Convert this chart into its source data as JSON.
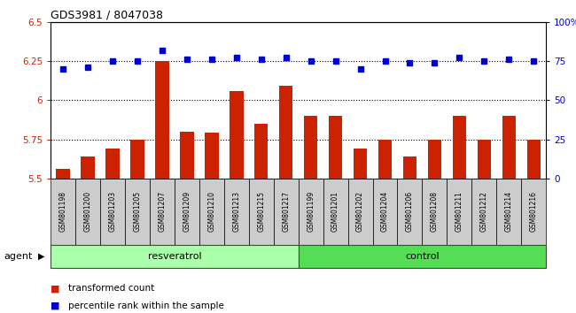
{
  "title": "GDS3981 / 8047038",
  "samples": [
    "GSM801198",
    "GSM801200",
    "GSM801203",
    "GSM801205",
    "GSM801207",
    "GSM801209",
    "GSM801210",
    "GSM801213",
    "GSM801215",
    "GSM801217",
    "GSM801199",
    "GSM801201",
    "GSM801202",
    "GSM801204",
    "GSM801206",
    "GSM801208",
    "GSM801211",
    "GSM801212",
    "GSM801214",
    "GSM801216"
  ],
  "transformed_count": [
    5.56,
    5.64,
    5.69,
    5.75,
    6.25,
    5.8,
    5.79,
    6.06,
    5.85,
    6.09,
    5.9,
    5.9,
    5.69,
    5.75,
    5.64,
    5.75,
    5.9,
    5.75,
    5.9,
    5.75
  ],
  "percentile_rank": [
    70,
    71,
    75,
    75,
    82,
    76,
    76,
    77,
    76,
    77,
    75,
    75,
    70,
    75,
    74,
    74,
    77,
    75,
    76,
    75
  ],
  "bar_color": "#cc2200",
  "dot_color": "#0000cc",
  "ylim_left": [
    5.5,
    6.5
  ],
  "ylim_right": [
    0,
    100
  ],
  "yticks_left": [
    5.5,
    5.75,
    6.0,
    6.25,
    6.5
  ],
  "yticks_right": [
    0,
    25,
    50,
    75,
    100
  ],
  "ytick_labels_left": [
    "5.5",
    "5.75",
    "6",
    "6.25",
    "6.5"
  ],
  "ytick_labels_right": [
    "0",
    "25",
    "50",
    "75",
    "100%"
  ],
  "grid_values": [
    5.75,
    6.0,
    6.25
  ],
  "resveratrol_color": "#aaffaa",
  "control_color": "#55dd55",
  "sample_box_color": "#cccccc",
  "agent_label": "agent",
  "resveratrol_count": 10,
  "control_count": 10,
  "legend_bar_label": "transformed count",
  "legend_dot_label": "percentile rank within the sample"
}
